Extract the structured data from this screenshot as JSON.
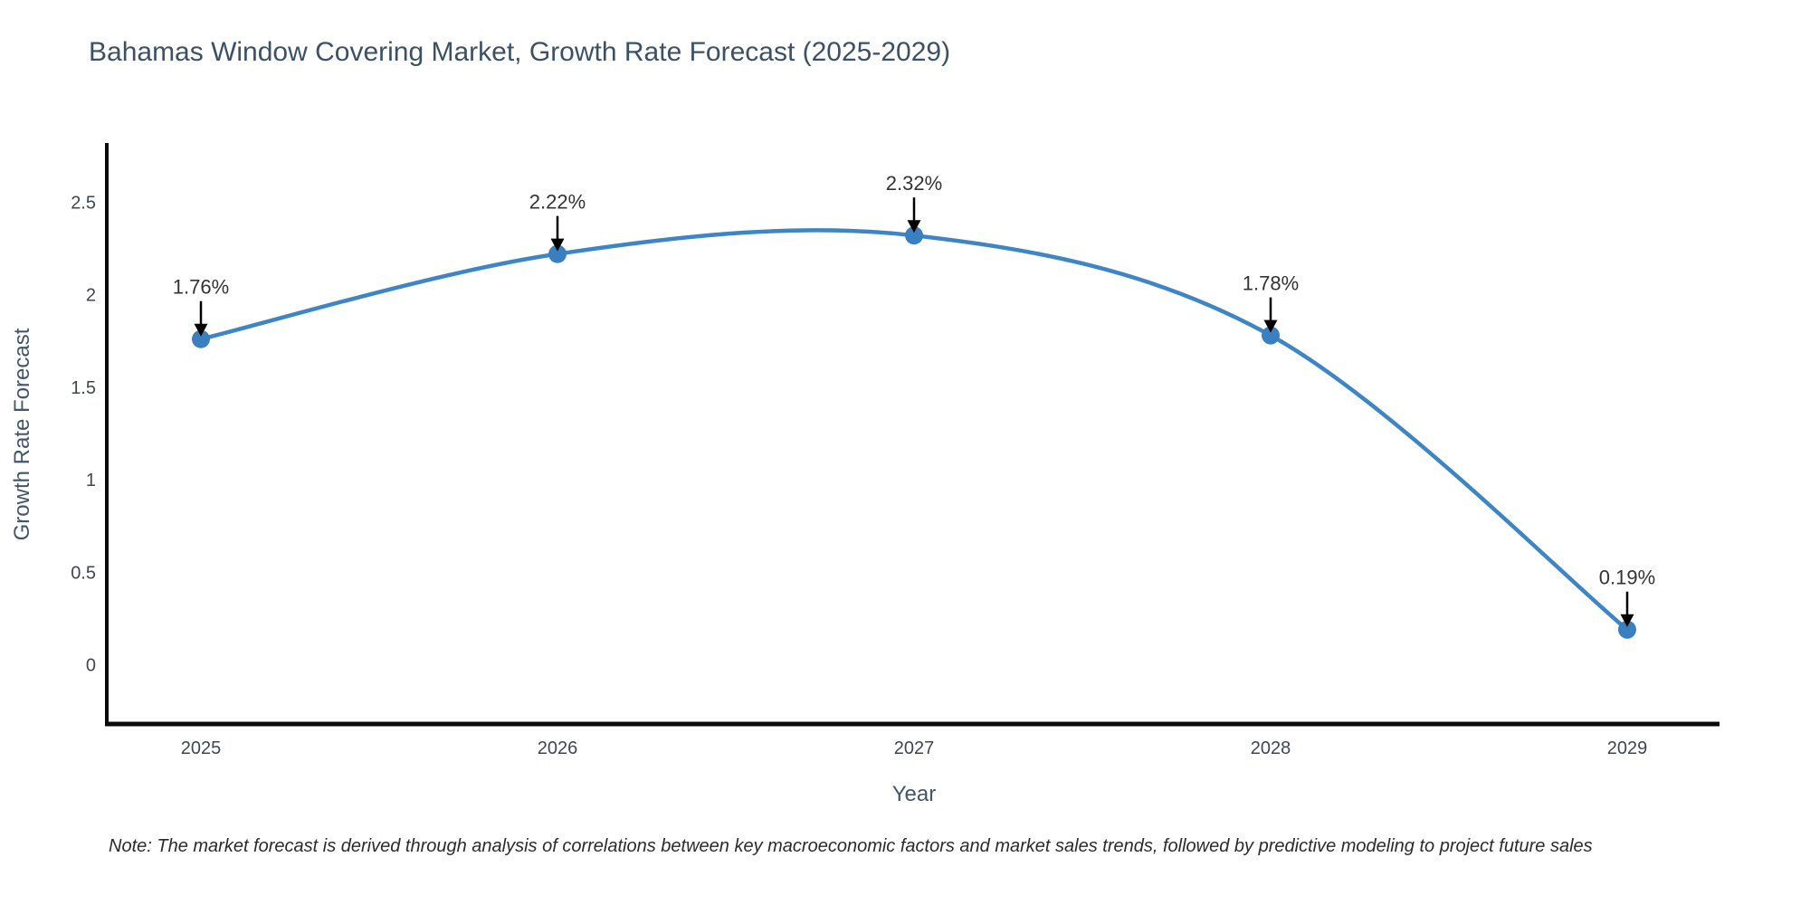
{
  "title": "Bahamas Window Covering Market, Growth Rate Forecast (2025-2029)",
  "note": "Note: The market forecast is derived through analysis of correlations between key macroeconomic factors and market sales trends, followed by predictive modeling to project future sales",
  "chart_data": {
    "type": "line",
    "title": "Bahamas Window Covering Market, Growth Rate Forecast (2025-2029)",
    "x": [
      2025,
      2026,
      2027,
      2028,
      2029
    ],
    "xticks": [
      "2025",
      "2026",
      "2027",
      "2028",
      "2029"
    ],
    "series": [
      {
        "name": "Growth Rate Forecast",
        "values": [
          1.76,
          2.22,
          2.32,
          1.78,
          0.19
        ]
      }
    ],
    "annotations": [
      "1.76%",
      "2.22%",
      "2.32%",
      "1.78%",
      "0.19%"
    ],
    "xlabel": "Year",
    "ylabel": "Growth Rate Forecast",
    "yticks": [
      0,
      0.5,
      1,
      1.5,
      2,
      2.5
    ],
    "ytick_labels": [
      "0",
      "0.5",
      "1",
      "1.5",
      "2",
      "2.5"
    ],
    "ylim": [
      -0.32,
      2.81
    ],
    "grid": false,
    "legend": "none",
    "line_shape": "spline",
    "colors": {
      "line": "#3d85c4",
      "marker": "#3a7fc0",
      "arrow": "#000000",
      "axis": "#0a0a0a",
      "title": "#3d5166",
      "tick": "#3f4652",
      "annotation": "#333333"
    }
  }
}
